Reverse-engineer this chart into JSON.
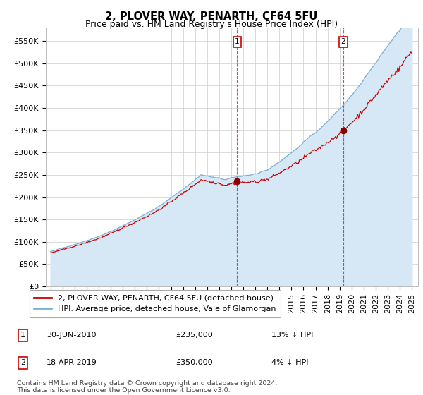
{
  "title": "2, PLOVER WAY, PENARTH, CF64 5FU",
  "subtitle": "Price paid vs. HM Land Registry's House Price Index (HPI)",
  "ylabel_ticks": [
    "£0",
    "£50K",
    "£100K",
    "£150K",
    "£200K",
    "£250K",
    "£300K",
    "£350K",
    "£400K",
    "£450K",
    "£500K",
    "£550K"
  ],
  "ytick_values": [
    0,
    50000,
    100000,
    150000,
    200000,
    250000,
    300000,
    350000,
    400000,
    450000,
    500000,
    550000
  ],
  "ylim": [
    0,
    580000
  ],
  "line1_color": "#cc0000",
  "line2_color": "#7bafd4",
  "line2_fill_color": "#d6e8f5",
  "background_color": "#ffffff",
  "grid_color": "#cccccc",
  "sale1_year": 2010.5,
  "sale1_price": 235000,
  "sale2_year": 2019.3,
  "sale2_price": 350000,
  "legend_line1": "2, PLOVER WAY, PENARTH, CF64 5FU (detached house)",
  "legend_line2": "HPI: Average price, detached house, Vale of Glamorgan",
  "annotation1_date": "30-JUN-2010",
  "annotation1_price": "£235,000",
  "annotation1_pct": "13% ↓ HPI",
  "annotation2_date": "18-APR-2019",
  "annotation2_price": "£350,000",
  "annotation2_pct": "4% ↓ HPI",
  "footer": "Contains HM Land Registry data © Crown copyright and database right 2024.\nThis data is licensed under the Open Government Licence v3.0.",
  "title_fontsize": 10.5,
  "subtitle_fontsize": 9,
  "tick_fontsize": 8,
  "legend_fontsize": 8,
  "annotation_fontsize": 8
}
